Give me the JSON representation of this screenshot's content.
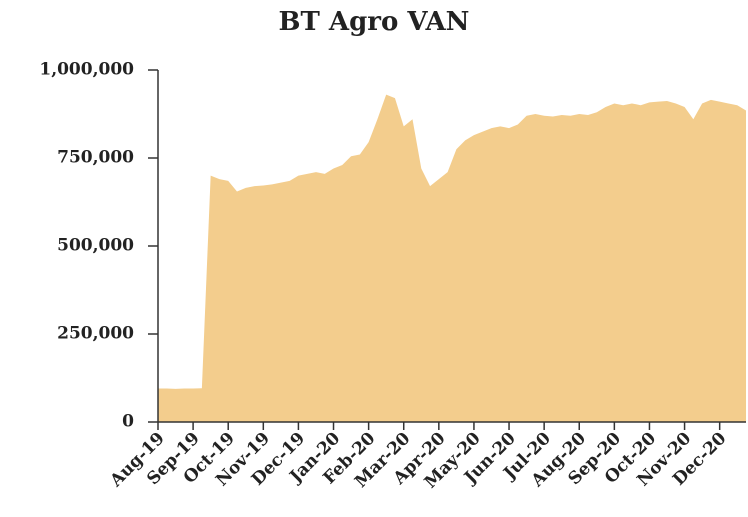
{
  "chart_data": {
    "type": "area",
    "title": "BT Agro VAN",
    "color": "#f3cd8d",
    "categories": [
      "Aug-19",
      null,
      null,
      null,
      "Sep-19",
      null,
      null,
      null,
      "Oct-19",
      null,
      null,
      null,
      "Nov-19",
      null,
      null,
      null,
      "Dec-19",
      null,
      null,
      null,
      "Jan-20",
      null,
      null,
      null,
      "Feb-20",
      null,
      null,
      null,
      "Mar-20",
      null,
      null,
      null,
      "Apr-20",
      null,
      null,
      null,
      "May-20",
      null,
      null,
      null,
      "Jun-20",
      null,
      null,
      null,
      "Jul-20",
      null,
      null,
      null,
      "Aug-20",
      null,
      null,
      null,
      "Sep-20",
      null,
      null,
      null,
      "Oct-20",
      null,
      null,
      null,
      "Nov-20",
      null,
      null,
      null,
      "Dec-20",
      null,
      null,
      null
    ],
    "values": [
      95000,
      95000,
      94000,
      95000,
      95000,
      96000,
      700000,
      690000,
      685000,
      655000,
      665000,
      670000,
      672000,
      675000,
      680000,
      685000,
      700000,
      705000,
      710000,
      705000,
      720000,
      730000,
      755000,
      760000,
      795000,
      860000,
      930000,
      920000,
      840000,
      860000,
      720000,
      670000,
      690000,
      710000,
      775000,
      800000,
      815000,
      825000,
      835000,
      840000,
      835000,
      845000,
      870000,
      875000,
      870000,
      868000,
      872000,
      870000,
      875000,
      872000,
      880000,
      895000,
      905000,
      900000,
      905000,
      900000,
      908000,
      910000,
      912000,
      905000,
      895000,
      860000,
      905000,
      915000,
      910000,
      905000,
      900000,
      885000
    ],
    "ylim": [
      0,
      1000000
    ],
    "yticks": [
      0,
      {
        "value": 250000,
        "label": "250,000"
      },
      {
        "value": 500000,
        "label": "500,000"
      },
      {
        "value": 750000,
        "label": "750,000"
      },
      {
        "value": 1000000,
        "label": "1,000,000"
      }
    ]
  }
}
